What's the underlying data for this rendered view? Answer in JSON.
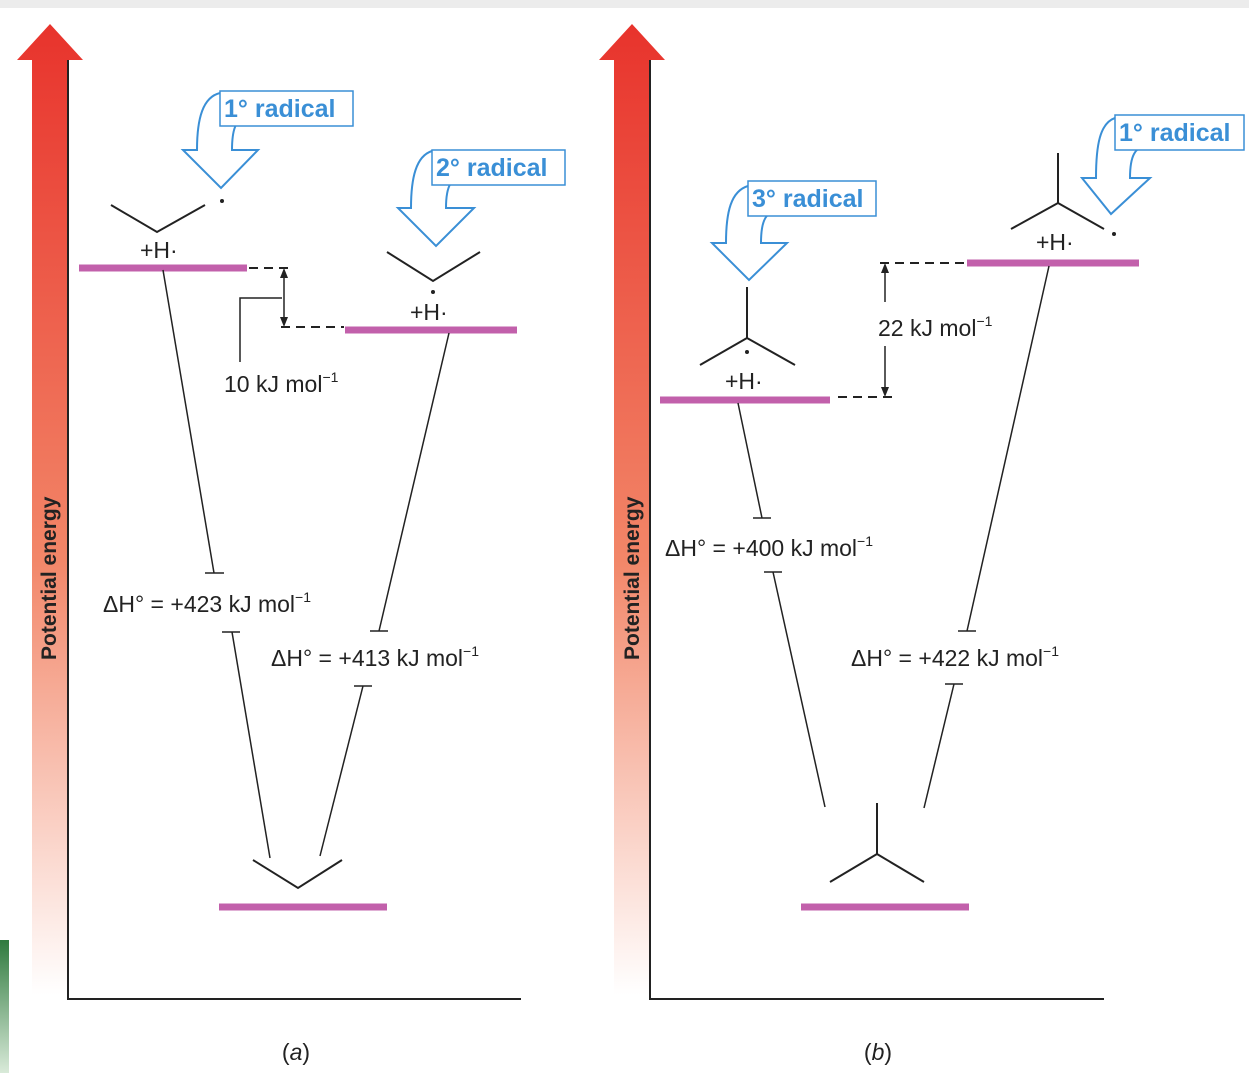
{
  "panels": [
    {
      "id": "a",
      "panel_label": "a",
      "axis_label": "Potential energy",
      "radical_labels": [
        "1° radical",
        "2° radical"
      ],
      "h_atom_labels": [
        "+H·",
        "+H·"
      ],
      "gap_label": {
        "prefix": "10 kJ mol",
        "sup": "−1"
      },
      "enthalpy_labels": [
        {
          "prefix": "ΔH° = +423 kJ mol",
          "sup": "−1"
        },
        {
          "prefix": "ΔH° = +413 kJ mol",
          "sup": "−1"
        }
      ]
    },
    {
      "id": "b",
      "panel_label": "b",
      "axis_label": "Potential energy",
      "radical_labels": [
        "3° radical",
        "1° radical"
      ],
      "h_atom_labels": [
        "+H·",
        "+H·"
      ],
      "gap_label": {
        "prefix": "22 kJ mol",
        "sup": "−1"
      },
      "enthalpy_labels": [
        {
          "prefix": "ΔH° = +400 kJ mol",
          "sup": "−1"
        },
        {
          "prefix": "ΔH° = +422 kJ mol",
          "sup": "−1"
        }
      ]
    }
  ],
  "colors": {
    "level": "#c260ab",
    "callout": "#3a8fd6",
    "arrow_top": "#e8332c",
    "arrow_bottom": "#ffffff",
    "line": "#222222"
  }
}
